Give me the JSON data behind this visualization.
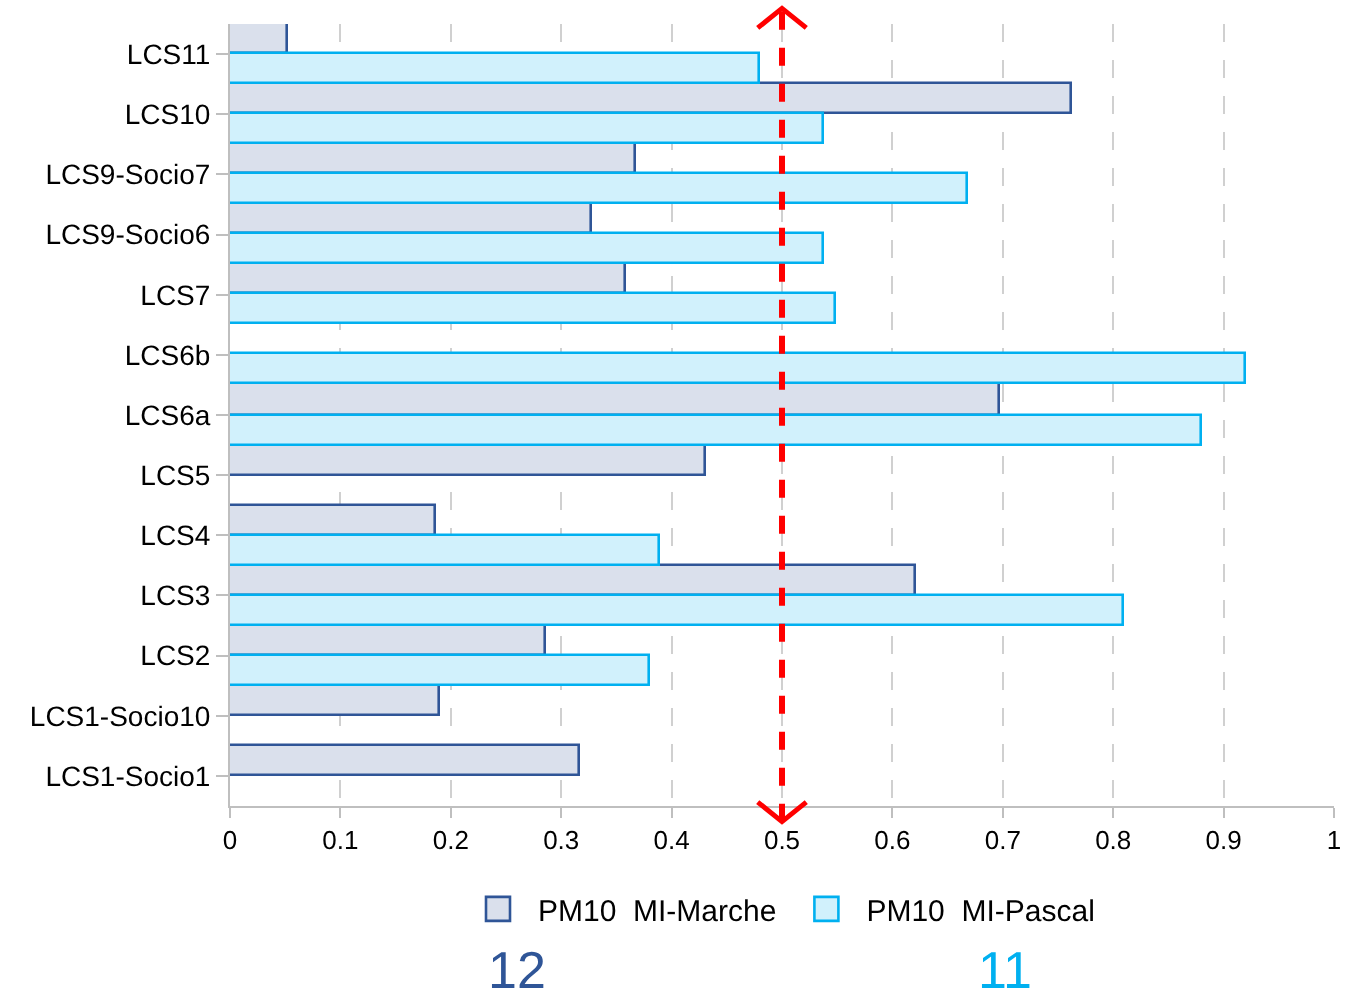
{
  "chart_data": {
    "type": "bar",
    "orientation": "horizontal",
    "categories": [
      "LCS11",
      "LCS10",
      "LCS9-Socio7",
      "LCS9-Socio6",
      "LCS7",
      "LCS6b",
      "LCS6a",
      "LCS5",
      "LCS4",
      "LCS3",
      "LCS2",
      "LCS1-Socio10",
      "LCS1-Socio1"
    ],
    "series": [
      {
        "name": "PM10  MI-Marche",
        "color": "#2f5597",
        "values": [
          0.052,
          0.762,
          0.367,
          0.327,
          0.359,
          null,
          0.698,
          0.432,
          0.186,
          0.622,
          0.286,
          0.191,
          0.317
        ]
      },
      {
        "name": "PM10  MI-Pascal",
        "color": "#00b0f0",
        "values": [
          0.48,
          0.538,
          0.669,
          0.538,
          0.548,
          0.92,
          0.88,
          null,
          0.39,
          0.81,
          0.38,
          null,
          null
        ]
      }
    ],
    "xlim": [
      0,
      1
    ],
    "xticks": [
      0,
      0.1,
      0.2,
      0.3,
      0.4,
      0.5,
      0.6,
      0.7,
      0.8,
      0.9,
      1
    ],
    "grid": "x",
    "legend": "bottom",
    "ref_lines": [
      {
        "axis": "x",
        "value": 0.5,
        "color": "#ff0000",
        "line_style": "dashed"
      }
    ],
    "annotations": [
      "12",
      "11"
    ]
  }
}
